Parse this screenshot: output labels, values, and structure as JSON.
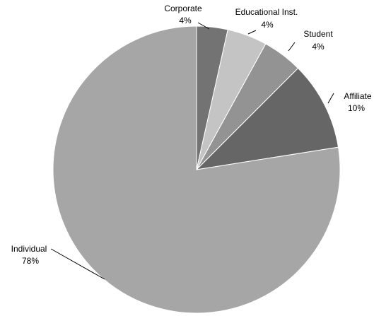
{
  "chart_data": {
    "type": "pie",
    "title": "",
    "slices": [
      {
        "label": "Corporate",
        "value_label": "4%",
        "value": 3.5,
        "color": "#737373"
      },
      {
        "label": "Educational Inst.",
        "value_label": "4%",
        "value": 4.5,
        "color": "#c4c4c4"
      },
      {
        "label": "Student",
        "value_label": "4%",
        "value": 4.5,
        "color": "#939393"
      },
      {
        "label": "Affiliate",
        "value_label": "10%",
        "value": 10,
        "color": "#666666"
      },
      {
        "label": "Individual",
        "value_label": "78%",
        "value": 77.5,
        "color": "#a6a6a6"
      }
    ],
    "start_angle": "12 o'clock",
    "direction": "clockwise",
    "legend": "none"
  }
}
